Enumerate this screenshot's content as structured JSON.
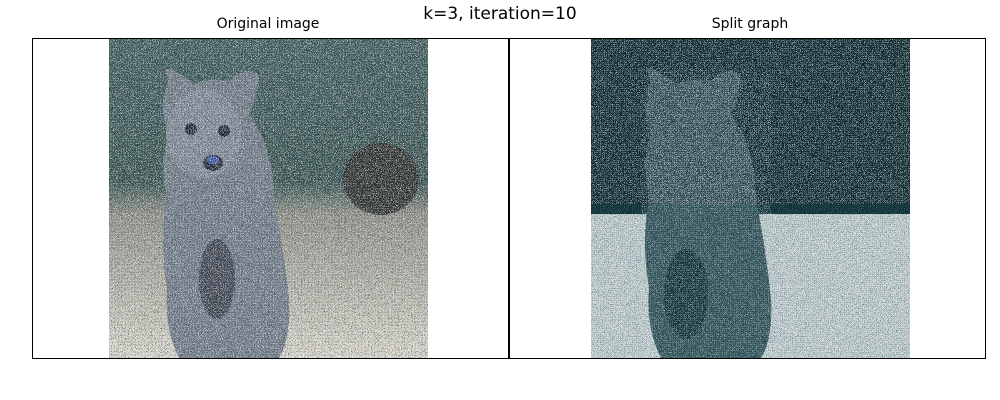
{
  "figure": {
    "suptitle": "k=3, iteration=10"
  },
  "panels": [
    {
      "title": "Original image",
      "content": "noisy-color-photo",
      "subject": "quokka"
    },
    {
      "title": "Split graph",
      "content": "segmented-image",
      "clusters": 3,
      "palette": [
        "#0f2b32",
        "#d6dadb",
        "#2c4a50"
      ]
    }
  ],
  "colors": {
    "original_background_teal": "#3f5e5f",
    "original_ground_light": "#d8d6cc",
    "original_noise_white": "#ffffff",
    "original_noise_dark": "#1a1a1a"
  }
}
